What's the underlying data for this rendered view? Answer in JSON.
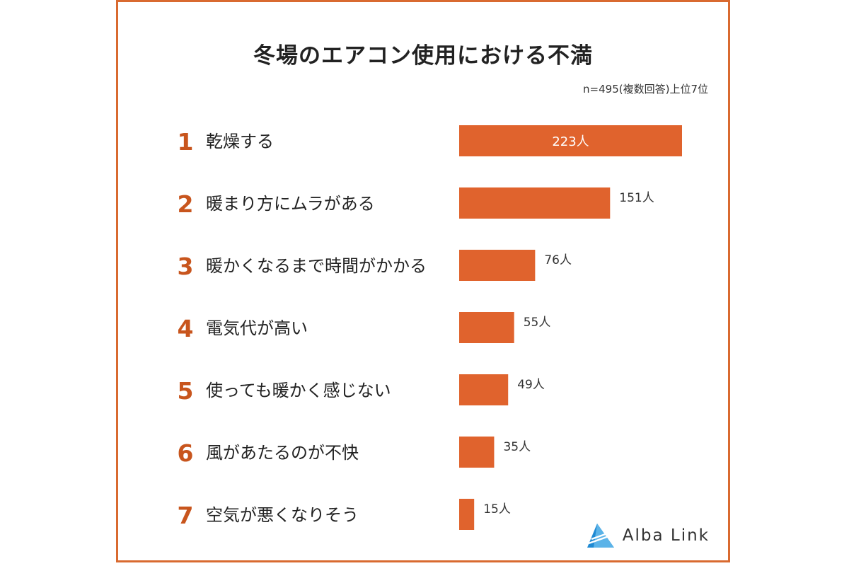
{
  "colors": {
    "accent": "#e0632d",
    "border": "#d96a30",
    "rank_number": "#c8551d",
    "text": "#222222",
    "brand_blue": "#2a8fd6"
  },
  "chart_data": {
    "type": "bar",
    "orientation": "horizontal",
    "title": "冬場のエアコン使用における不満",
    "subtitle": "n=495(複数回答)上位7位",
    "ranks": [
      "1",
      "2",
      "3",
      "4",
      "5",
      "6",
      "7"
    ],
    "categories": [
      "乾燥する",
      "暖まり方にムラがある",
      "暖かくなるまで時間がかかる",
      "電気代が高い",
      "使っても暖かく感じない",
      "風があたるのが不快",
      "空気が悪くなりそう"
    ],
    "values": [
      223,
      151,
      76,
      55,
      49,
      35,
      15
    ],
    "value_labels": [
      "223人",
      "151人",
      "76人",
      "55人",
      "49人",
      "35人",
      "15人"
    ],
    "xlim": [
      0,
      223
    ],
    "grid": false,
    "legend": "none"
  },
  "brand": {
    "name": "Alba Link",
    "logo_icon": "alba-link-triangle-icon"
  }
}
